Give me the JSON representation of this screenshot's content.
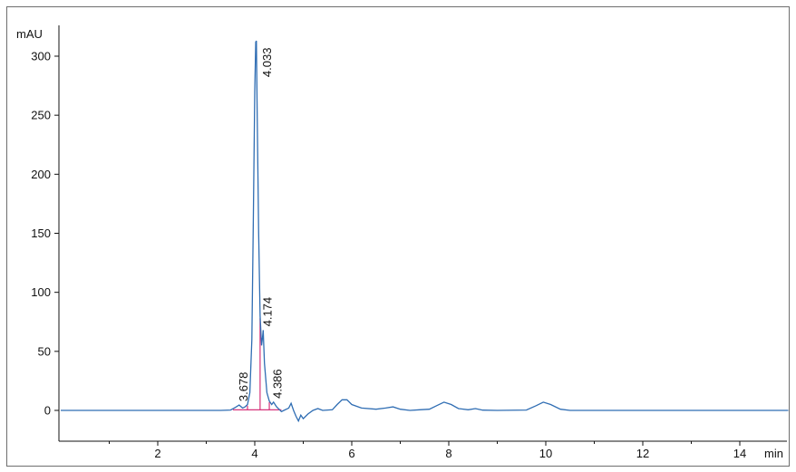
{
  "chart_data": {
    "type": "line",
    "title": "",
    "ylabel": "mAU",
    "xlabel": "min",
    "xlim": [
      0,
      15
    ],
    "ylim": [
      -25,
      325
    ],
    "x_ticks": [
      2,
      4,
      6,
      8,
      10,
      12,
      14
    ],
    "y_ticks": [
      0,
      50,
      100,
      150,
      200,
      250,
      300
    ],
    "grid": false,
    "colors": {
      "trace": "#2f6db3",
      "integration": "#d6337a",
      "axis": "#111111"
    },
    "series": [
      {
        "values": [
          [
            0.0,
            0
          ],
          [
            3.3,
            0
          ],
          [
            3.5,
            0.3
          ],
          [
            3.6,
            2.5
          ],
          [
            3.678,
            4.5
          ],
          [
            3.75,
            2
          ],
          [
            3.8,
            3
          ],
          [
            3.85,
            5
          ],
          [
            3.9,
            15
          ],
          [
            3.94,
            60
          ],
          [
            3.97,
            160
          ],
          [
            4.0,
            270
          ],
          [
            4.02,
            312
          ],
          [
            4.033,
            313
          ],
          [
            4.05,
            250
          ],
          [
            4.08,
            150
          ],
          [
            4.11,
            80
          ],
          [
            4.14,
            55
          ],
          [
            4.16,
            62
          ],
          [
            4.174,
            68
          ],
          [
            4.2,
            40
          ],
          [
            4.25,
            15
          ],
          [
            4.3,
            8
          ],
          [
            4.35,
            5
          ],
          [
            4.386,
            7
          ],
          [
            4.45,
            3
          ],
          [
            4.5,
            1
          ],
          [
            4.55,
            -1
          ],
          [
            4.6,
            0
          ],
          [
            4.7,
            2
          ],
          [
            4.75,
            6
          ],
          [
            4.8,
            0
          ],
          [
            4.85,
            -5
          ],
          [
            4.9,
            -9
          ],
          [
            4.95,
            -4
          ],
          [
            5.0,
            -7
          ],
          [
            5.1,
            -3
          ],
          [
            5.2,
            0
          ],
          [
            5.3,
            1.5
          ],
          [
            5.4,
            0
          ],
          [
            5.6,
            0.5
          ],
          [
            5.7,
            5
          ],
          [
            5.8,
            9
          ],
          [
            5.9,
            9
          ],
          [
            6.0,
            5
          ],
          [
            6.2,
            2
          ],
          [
            6.5,
            1
          ],
          [
            6.7,
            2
          ],
          [
            6.85,
            3
          ],
          [
            7.0,
            1
          ],
          [
            7.2,
            0
          ],
          [
            7.4,
            0.5
          ],
          [
            7.6,
            1
          ],
          [
            7.75,
            4
          ],
          [
            7.9,
            7
          ],
          [
            8.05,
            5
          ],
          [
            8.2,
            1.5
          ],
          [
            8.4,
            0.5
          ],
          [
            8.55,
            1.5
          ],
          [
            8.7,
            0.2
          ],
          [
            9.0,
            0
          ],
          [
            9.6,
            0.3
          ],
          [
            9.8,
            4
          ],
          [
            9.95,
            7
          ],
          [
            10.1,
            5
          ],
          [
            10.3,
            1
          ],
          [
            10.5,
            0
          ],
          [
            15.0,
            0
          ]
        ]
      }
    ],
    "peaks": [
      {
        "rt": "3.678",
        "x": 3.678,
        "y": 4.5
      },
      {
        "rt": "4.033",
        "x": 4.033,
        "y": 313
      },
      {
        "rt": "4.174",
        "x": 4.174,
        "y": 68
      },
      {
        "rt": "4.386",
        "x": 4.386,
        "y": 7
      }
    ]
  }
}
